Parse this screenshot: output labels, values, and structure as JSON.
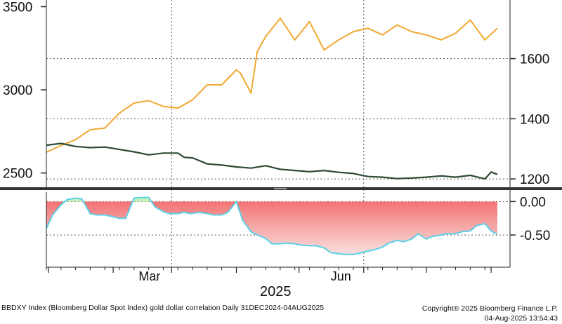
{
  "footer": {
    "description": "BBDXY Index (Bloomberg Dollar Spot Index) gold dollar correlation  Daily 31DEC2024-04AUG2025",
    "copyright": "Copyright® 2025 Bloomberg Finance L.P.",
    "timestamp": "04-Aug-2025 13:54:43"
  },
  "colors": {
    "gold": "#f0a830",
    "dollar": "#2e4a33",
    "corr_line": "#5ad0e8",
    "corr_fill_negative": "#f26b6b",
    "corr_fill_positive": "#7ee06a",
    "separator": "#333333"
  },
  "chart_data": [
    {
      "type": "line",
      "series": [
        {
          "axis": "left",
          "color": "#f0a830",
          "x": [
            "2024-12-31",
            "2025-01-07",
            "2025-01-14",
            "2025-01-21",
            "2025-01-28",
            "2025-02-04",
            "2025-02-11",
            "2025-02-18",
            "2025-02-25",
            "2025-03-04",
            "2025-03-11",
            "2025-03-18",
            "2025-03-25",
            "2025-04-01",
            "2025-04-03",
            "2025-04-08",
            "2025-04-11",
            "2025-04-15",
            "2025-04-22",
            "2025-04-29",
            "2025-05-06",
            "2025-05-13",
            "2025-05-20",
            "2025-05-27",
            "2025-06-03",
            "2025-06-10",
            "2025-06-17",
            "2025-06-24",
            "2025-07-01",
            "2025-07-08",
            "2025-07-15",
            "2025-07-22",
            "2025-07-29",
            "2025-08-04"
          ],
          "values": [
            2625,
            2665,
            2700,
            2760,
            2770,
            2860,
            2920,
            2935,
            2900,
            2890,
            2940,
            3030,
            3030,
            3120,
            3100,
            2980,
            3230,
            3320,
            3430,
            3300,
            3410,
            3240,
            3300,
            3350,
            3370,
            3330,
            3390,
            3350,
            3330,
            3300,
            3340,
            3420,
            3300,
            3370
          ]
        },
        {
          "axis": "right",
          "color": "#2e4a33",
          "x": [
            "2024-12-31",
            "2025-01-07",
            "2025-01-14",
            "2025-01-21",
            "2025-01-28",
            "2025-02-04",
            "2025-02-11",
            "2025-02-18",
            "2025-02-25",
            "2025-03-04",
            "2025-03-07",
            "2025-03-11",
            "2025-03-18",
            "2025-03-25",
            "2025-04-01",
            "2025-04-08",
            "2025-04-15",
            "2025-04-22",
            "2025-04-29",
            "2025-05-06",
            "2025-05-13",
            "2025-05-20",
            "2025-05-27",
            "2025-06-03",
            "2025-06-10",
            "2025-06-17",
            "2025-06-24",
            "2025-07-01",
            "2025-07-08",
            "2025-07-15",
            "2025-07-22",
            "2025-07-29",
            "2025-08-01",
            "2025-08-04"
          ],
          "values": [
            1312,
            1318,
            1308,
            1304,
            1306,
            1298,
            1290,
            1280,
            1286,
            1286,
            1272,
            1270,
            1250,
            1246,
            1240,
            1236,
            1244,
            1232,
            1228,
            1224,
            1228,
            1222,
            1218,
            1208,
            1206,
            1201,
            1203,
            1206,
            1210,
            1206,
            1212,
            1200,
            1223,
            1215
          ]
        }
      ],
      "left_axis": {
        "ticks": [
          2500,
          3000,
          3500
        ]
      },
      "right_axis": {
        "ticks": [
          1200,
          1400,
          1600
        ]
      },
      "ylim_left": [
        2410,
        3540
      ],
      "ylim_right": [
        1170,
        1795
      ],
      "grid": "dotted, at right-axis ticks"
    },
    {
      "type": "area",
      "series": [
        {
          "color": "#5ad0e8",
          "x": [
            "2024-12-31",
            "2025-01-03",
            "2025-01-07",
            "2025-01-10",
            "2025-01-14",
            "2025-01-17",
            "2025-01-21",
            "2025-01-24",
            "2025-01-28",
            "2025-01-31",
            "2025-02-04",
            "2025-02-07",
            "2025-02-11",
            "2025-02-14",
            "2025-02-18",
            "2025-02-21",
            "2025-02-25",
            "2025-02-28",
            "2025-03-04",
            "2025-03-07",
            "2025-03-10",
            "2025-03-14",
            "2025-03-18",
            "2025-03-21",
            "2025-03-25",
            "2025-03-28",
            "2025-04-01",
            "2025-04-04",
            "2025-04-08",
            "2025-04-11",
            "2025-04-15",
            "2025-04-18",
            "2025-04-22",
            "2025-04-25",
            "2025-04-29",
            "2025-05-02",
            "2025-05-06",
            "2025-05-09",
            "2025-05-13",
            "2025-05-16",
            "2025-05-20",
            "2025-05-23",
            "2025-05-27",
            "2025-05-30",
            "2025-06-03",
            "2025-06-06",
            "2025-06-10",
            "2025-06-13",
            "2025-06-17",
            "2025-06-20",
            "2025-06-24",
            "2025-06-27",
            "2025-07-01",
            "2025-07-04",
            "2025-07-08",
            "2025-07-11",
            "2025-07-15",
            "2025-07-18",
            "2025-07-22",
            "2025-07-25",
            "2025-07-29",
            "2025-08-01",
            "2025-08-04"
          ],
          "values": [
            -0.4,
            -0.2,
            -0.05,
            0.03,
            0.05,
            0.04,
            -0.18,
            -0.2,
            -0.2,
            -0.22,
            -0.25,
            -0.25,
            0.05,
            0.06,
            0.06,
            -0.08,
            -0.15,
            -0.18,
            -0.18,
            -0.16,
            -0.18,
            -0.16,
            -0.18,
            -0.2,
            -0.2,
            -0.16,
            0.0,
            -0.28,
            -0.45,
            -0.5,
            -0.55,
            -0.63,
            -0.63,
            -0.62,
            -0.63,
            -0.65,
            -0.66,
            -0.66,
            -0.69,
            -0.76,
            -0.78,
            -0.79,
            -0.79,
            -0.77,
            -0.74,
            -0.72,
            -0.68,
            -0.62,
            -0.58,
            -0.6,
            -0.56,
            -0.48,
            -0.56,
            -0.52,
            -0.5,
            -0.48,
            -0.48,
            -0.45,
            -0.44,
            -0.36,
            -0.33,
            -0.44,
            -0.49
          ]
        }
      ],
      "right_axis": {
        "ticks": [
          0.0,
          -0.5
        ],
        "tick_labels": [
          "0.00",
          "-0.50"
        ]
      },
      "ylim": [
        -0.98,
        0.14
      ],
      "grid": "dotted"
    }
  ],
  "x_axis": {
    "month_labels": [
      {
        "label": "Mar",
        "date": "2025-03-01"
      },
      {
        "label": "Jun",
        "date": "2025-06-01"
      }
    ],
    "year_label": "2025"
  }
}
